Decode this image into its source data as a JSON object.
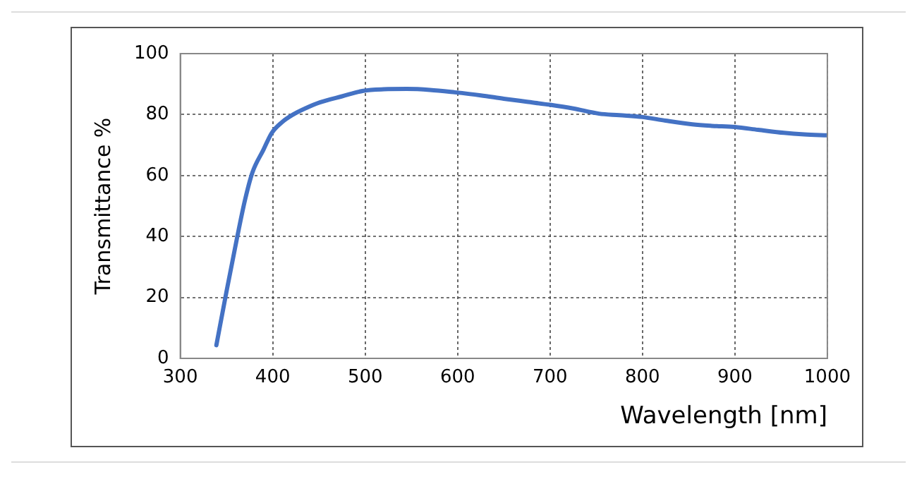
{
  "chart_data": {
    "type": "line",
    "xlabel": "Wavelength [nm]",
    "ylabel": "Transmittance %",
    "series": [
      {
        "color": "#4472c4",
        "x": [
          339,
          350,
          362,
          370,
          378,
          390,
          399,
          410,
          422,
          435,
          451,
          475,
          498,
          520,
          545,
          570,
          597,
          625,
          650,
          675,
          700,
          725,
          753,
          775,
          800,
          825,
          854,
          875,
          900,
          925,
          953,
          975,
          1000
        ],
        "values": [
          4.3,
          22,
          40.5,
          52,
          61,
          68.5,
          74,
          77.5,
          80,
          82,
          84,
          86,
          87.8,
          88.3,
          88.4,
          88.1,
          87.3,
          86.3,
          85.2,
          84.2,
          83.2,
          82,
          80.3,
          79.8,
          79.2,
          78,
          76.8,
          76.3,
          75.9,
          75,
          74,
          73.5,
          73.2
        ]
      }
    ],
    "xlim": [
      300,
      1000
    ],
    "xticks": [
      300,
      400,
      500,
      600,
      700,
      800,
      900,
      1000
    ],
    "ylim": [
      0,
      100
    ],
    "yticks": [
      0,
      20,
      40,
      60,
      80,
      100
    ],
    "grid": true,
    "marker": "none",
    "line_style": "solid"
  }
}
